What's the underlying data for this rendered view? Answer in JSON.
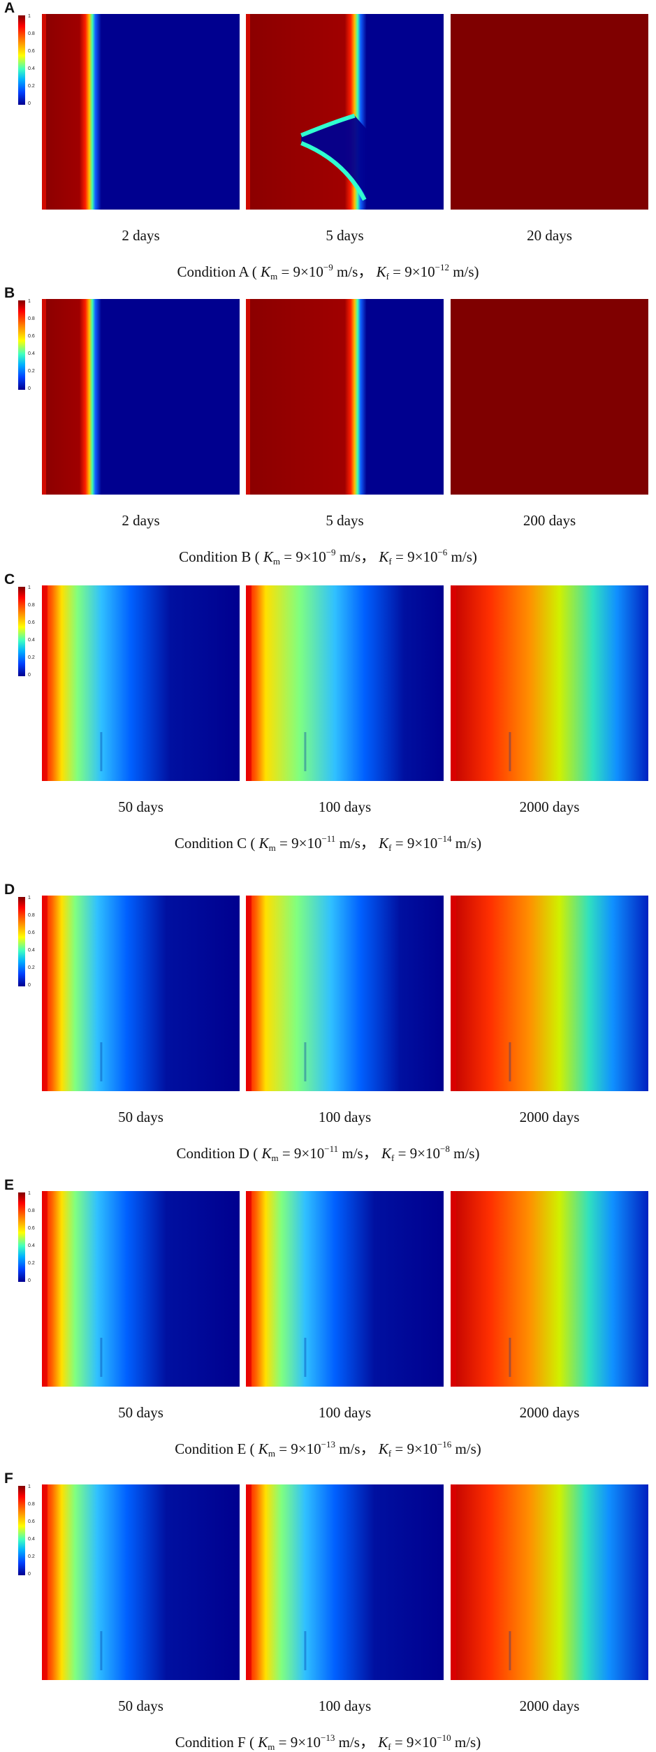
{
  "colorbar": {
    "ticks": [
      "1",
      "0.8",
      "0.6",
      "0.4",
      "0.2",
      "0"
    ]
  },
  "rows": [
    {
      "letter": "A",
      "condition": "Condition A",
      "km_exp": "−9",
      "kf_exp": "−12",
      "times": [
        "2 days",
        "5 days",
        "20 days"
      ]
    },
    {
      "letter": "B",
      "condition": "Condition B",
      "km_exp": "−9",
      "kf_exp": "−6",
      "times": [
        "2 days",
        "5 days",
        "200 days"
      ]
    },
    {
      "letter": "C",
      "condition": "Condition C",
      "km_exp": "−11",
      "kf_exp": "−14",
      "times": [
        "50 days",
        "100 days",
        "2000 days"
      ]
    },
    {
      "letter": "D",
      "condition": "Condition D",
      "km_exp": "−11",
      "kf_exp": "−8",
      "times": [
        "50 days",
        "100 days",
        "2000 days"
      ]
    },
    {
      "letter": "E",
      "condition": "Condition E",
      "km_exp": "−13",
      "kf_exp": "−16",
      "times": [
        "50 days",
        "100 days",
        "2000 days"
      ]
    },
    {
      "letter": "F",
      "condition": "Condition F",
      "km_exp": "−13",
      "kf_exp": "−10",
      "times": [
        "50 days",
        "100 days",
        "2000 days"
      ]
    }
  ],
  "formula": {
    "km_symbol": "K",
    "km_sub": "m",
    "kf_symbol": "K",
    "kf_sub": "f",
    "value_prefix": "= 9×10",
    "unit": "m/s"
  }
}
